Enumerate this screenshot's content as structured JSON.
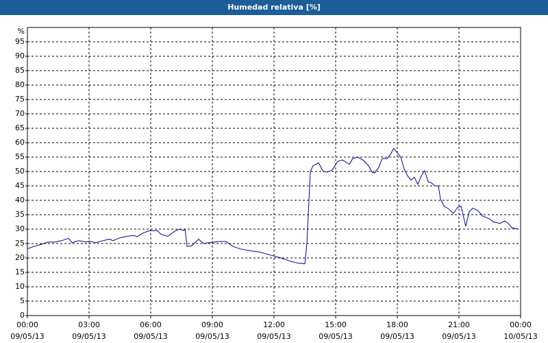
{
  "chart_data": {
    "type": "line",
    "title": "Humedad relativa [%]",
    "y_label": "%",
    "x": [
      0,
      0.33,
      0.67,
      1,
      1.33,
      1.67,
      2,
      2.17,
      2.5,
      2.83,
      3,
      3.33,
      3.67,
      4,
      4.17,
      4.5,
      4.83,
      5.17,
      5.33,
      5.67,
      5.93,
      6.33,
      6.5,
      6.83,
      7.17,
      7.4,
      7.6,
      7.67,
      7.77,
      8,
      8.33,
      8.57,
      8.83,
      9.33,
      9.67,
      10,
      10.33,
      10.83,
      11.33,
      11.83,
      12.33,
      12.83,
      13.17,
      13.5,
      13.6,
      13.77,
      13.9,
      14.17,
      14.4,
      14.6,
      14.83,
      15.1,
      15.33,
      15.67,
      15.83,
      16.07,
      16.33,
      16.6,
      16.77,
      16.9,
      17.1,
      17.27,
      17.5,
      17.67,
      17.83,
      18,
      18.17,
      18.33,
      18.5,
      18.67,
      18.83,
      19,
      19.17,
      19.33,
      19.5,
      19.67,
      19.83,
      20,
      20.1,
      20.27,
      20.5,
      20.73,
      20.93,
      21.1,
      21.33,
      21.5,
      21.67,
      21.9,
      22.17,
      22.5,
      22.67,
      23,
      23.23,
      23.4,
      23.57,
      23.73,
      23.9
    ],
    "series": [
      {
        "color": "#00008b",
        "values": [
          23.2,
          24,
          24.7,
          25.5,
          25.5,
          26,
          26.8,
          25.3,
          26,
          25.5,
          25.8,
          25.3,
          26,
          26.5,
          26,
          27,
          27.5,
          27.8,
          27.4,
          28.8,
          29.4,
          29.5,
          28.2,
          27.5,
          29.3,
          30,
          29.5,
          30,
          24,
          24.2,
          26.5,
          25,
          25.3,
          25.7,
          25.7,
          24,
          23.2,
          22.5,
          22,
          21,
          20,
          18.8,
          18.2,
          18,
          25,
          50,
          52,
          53,
          50,
          49.8,
          50.5,
          53.5,
          54,
          52.5,
          54.5,
          55,
          54,
          52,
          49.7,
          49.5,
          51.5,
          54.5,
          54.5,
          56,
          58,
          56.5,
          55,
          51,
          48.5,
          47,
          48,
          45.5,
          48.5,
          50.3,
          46.5,
          46,
          45,
          45,
          40.5,
          38,
          37,
          35.5,
          37.5,
          38,
          31,
          36,
          37.3,
          36.5,
          34.5,
          33.5,
          32.5,
          32,
          32.8,
          32,
          30.5,
          30.3,
          30
        ]
      }
    ],
    "xlim": [
      0,
      24
    ],
    "xticks": [
      {
        "value": 0,
        "label": "00:00"
      },
      {
        "value": 3,
        "label": "03:00"
      },
      {
        "value": 6,
        "label": "06:00"
      },
      {
        "value": 9,
        "label": "09:00"
      },
      {
        "value": 12,
        "label": "12:00"
      },
      {
        "value": 15,
        "label": "15:00"
      },
      {
        "value": 18,
        "label": "18:00"
      },
      {
        "value": 21,
        "label": "21:00"
      },
      {
        "value": 24,
        "label": "00:00"
      }
    ],
    "xtick_dates": [
      "09/05/13",
      "09/05/13",
      "09/05/13",
      "09/05/13",
      "09/05/13",
      "09/05/13",
      "09/05/13",
      "09/05/13",
      "10/05/13"
    ],
    "ylim": [
      0,
      100
    ],
    "yticks": [
      0,
      5,
      10,
      15,
      20,
      25,
      30,
      35,
      40,
      45,
      50,
      55,
      60,
      65,
      70,
      75,
      80,
      85,
      90,
      95
    ],
    "grid": true
  }
}
